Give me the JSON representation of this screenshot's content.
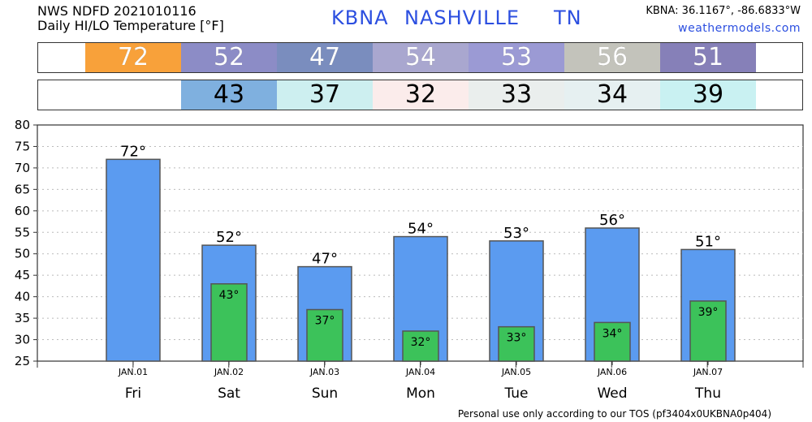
{
  "header": {
    "line1": "NWS NDFD 2021010116",
    "line2": "Daily HI/LO Temperature [°F]",
    "station": "KBNA",
    "city": "NASHVILLE",
    "state": "TN",
    "coords": "KBNA: 36.1167°, -86.6833°W",
    "site": "weathermodels.com"
  },
  "hi_strip": [
    {
      "value": "72",
      "color": "#f8a13a"
    },
    {
      "value": "52",
      "color": "#8c8cc6"
    },
    {
      "value": "47",
      "color": "#7a8dbe"
    },
    {
      "value": "54",
      "color": "#a9a7cf"
    },
    {
      "value": "53",
      "color": "#9b9ad4"
    },
    {
      "value": "56",
      "color": "#c3c3bb"
    },
    {
      "value": "51",
      "color": "#8680b8"
    }
  ],
  "lo_strip": [
    {
      "value": "",
      "color": "#ffffff"
    },
    {
      "value": "43",
      "color": "#7fb0df"
    },
    {
      "value": "37",
      "color": "#cdeff0"
    },
    {
      "value": "32",
      "color": "#fbeceb"
    },
    {
      "value": "33",
      "color": "#eaeeed"
    },
    {
      "value": "34",
      "color": "#e6f0f1"
    },
    {
      "value": "39",
      "color": "#c9f1f2"
    }
  ],
  "chart_data": {
    "type": "bar",
    "categories": [
      "JAN.01",
      "JAN.02",
      "JAN.03",
      "JAN.04",
      "JAN.05",
      "JAN.06",
      "JAN.07"
    ],
    "days": [
      "Fri",
      "Sat",
      "Sun",
      "Mon",
      "Tue",
      "Wed",
      "Thu"
    ],
    "series": [
      {
        "values": [
          72,
          52,
          47,
          54,
          53,
          56,
          51
        ],
        "color": "#5b9bf0",
        "labels": [
          "72°",
          "52°",
          "47°",
          "54°",
          "53°",
          "56°",
          "51°"
        ]
      },
      {
        "values": [
          null,
          43,
          37,
          32,
          33,
          34,
          39
        ],
        "color": "#3cc25a",
        "labels": [
          "",
          "43°",
          "37°",
          "32°",
          "33°",
          "34°",
          "39°"
        ]
      }
    ],
    "ylim": [
      25,
      80
    ],
    "yticks": [
      "25",
      "30",
      "35",
      "40",
      "45",
      "50",
      "55",
      "60",
      "65",
      "70",
      "75",
      "80"
    ],
    "grid": true
  },
  "footer": "Personal use only according to our TOS (pf3404x0UKBNA0p404)"
}
